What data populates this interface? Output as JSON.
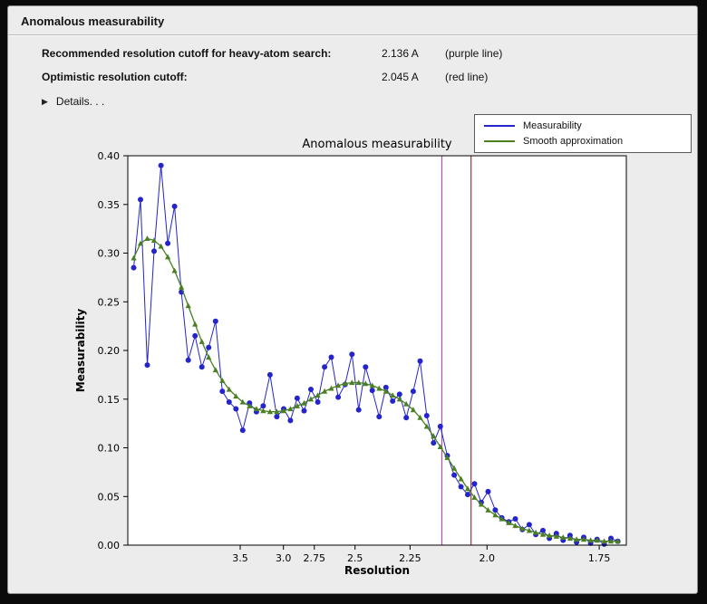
{
  "panel": {
    "title": "Anomalous measurability",
    "info_rows": [
      {
        "label": "Recommended resolution cutoff for heavy-atom search:",
        "value": "2.136 A",
        "note": "(purple line)"
      },
      {
        "label": "Optimistic resolution cutoff:",
        "value": "2.045 A",
        "note": "(red line)"
      }
    ],
    "details": {
      "label": "Details. . .",
      "expanded": false
    }
  },
  "legend": {
    "position": "top-right",
    "entries": [
      {
        "label": "Measurability",
        "color": "#2424cc"
      },
      {
        "label": "Smooth approximation",
        "color": "#4a8022"
      }
    ]
  },
  "chart_data": {
    "type": "line",
    "title": "Anomalous measurability",
    "xlabel": "Resolution",
    "ylabel": "Measurability",
    "grid": false,
    "legend_position": "upper right, above plot",
    "x_axis": {
      "scale": "inverse_resolution_squared",
      "tick_values_A": [
        3.5,
        3.0,
        2.75,
        2.5,
        2.25,
        2.0,
        1.75
      ],
      "tick_labels": [
        "3.5",
        "3.0",
        "2.75",
        "2.5",
        "2.25",
        "2.0",
        "1.75"
      ],
      "range_inv_sq": [
        0.005,
        0.345
      ]
    },
    "y_axis": {
      "tick_values": [
        0.0,
        0.05,
        0.1,
        0.15,
        0.2,
        0.25,
        0.3,
        0.35,
        0.4
      ],
      "tick_labels": [
        "0.00",
        "0.05",
        "0.10",
        "0.15",
        "0.20",
        "0.25",
        "0.30",
        "0.35",
        "0.40"
      ],
      "range": [
        0.0,
        0.4
      ]
    },
    "resolution_A": [
      10.541,
      8.56,
      7.392,
      6.601,
      6.019,
      5.568,
      5.206,
      4.906,
      4.652,
      4.434,
      4.245,
      4.077,
      3.928,
      3.794,
      3.673,
      3.564,
      3.463,
      3.37,
      3.284,
      3.205,
      3.131,
      3.062,
      2.997,
      2.937,
      2.88,
      2.826,
      2.775,
      2.726,
      2.68,
      2.637,
      2.595,
      2.555,
      2.517,
      2.481,
      2.446,
      2.413,
      2.381,
      2.35,
      2.321,
      2.292,
      2.265,
      2.238,
      2.212,
      2.188,
      2.164,
      2.141,
      2.118,
      2.096,
      2.075,
      2.055,
      2.035,
      2.016,
      1.997,
      1.978,
      1.961,
      1.943,
      1.927,
      1.91,
      1.894,
      1.879,
      1.863,
      1.849,
      1.834,
      1.82,
      1.806,
      1.793,
      1.779,
      1.766,
      1.754,
      1.741,
      1.729,
      1.717
    ],
    "series": [
      {
        "name": "Measurability",
        "color": "#2424cc",
        "marker": "circle",
        "values": [
          0.285,
          0.355,
          0.185,
          0.302,
          0.39,
          0.31,
          0.348,
          0.26,
          0.19,
          0.215,
          0.183,
          0.203,
          0.23,
          0.158,
          0.147,
          0.14,
          0.118,
          0.146,
          0.137,
          0.143,
          0.175,
          0.132,
          0.14,
          0.128,
          0.151,
          0.138,
          0.16,
          0.147,
          0.183,
          0.193,
          0.152,
          0.165,
          0.196,
          0.139,
          0.183,
          0.159,
          0.132,
          0.162,
          0.148,
          0.155,
          0.131,
          0.158,
          0.189,
          0.133,
          0.105,
          0.122,
          0.092,
          0.072,
          0.06,
          0.052,
          0.063,
          0.044,
          0.055,
          0.036,
          0.028,
          0.024,
          0.027,
          0.016,
          0.021,
          0.011,
          0.015,
          0.007,
          0.012,
          0.005,
          0.01,
          0.003,
          0.008,
          0.002,
          0.006,
          0.001,
          0.007,
          0.004
        ]
      },
      {
        "name": "Smooth approximation",
        "color": "#4a8022",
        "marker": "triangle",
        "values": [
          0.295,
          0.31,
          0.315,
          0.313,
          0.307,
          0.296,
          0.282,
          0.265,
          0.246,
          0.227,
          0.209,
          0.193,
          0.18,
          0.169,
          0.16,
          0.153,
          0.147,
          0.143,
          0.14,
          0.138,
          0.137,
          0.137,
          0.138,
          0.14,
          0.143,
          0.146,
          0.15,
          0.154,
          0.158,
          0.161,
          0.164,
          0.166,
          0.167,
          0.167,
          0.166,
          0.164,
          0.161,
          0.158,
          0.154,
          0.15,
          0.145,
          0.139,
          0.131,
          0.122,
          0.112,
          0.101,
          0.09,
          0.079,
          0.068,
          0.058,
          0.049,
          0.042,
          0.036,
          0.031,
          0.027,
          0.023,
          0.02,
          0.017,
          0.015,
          0.013,
          0.011,
          0.01,
          0.009,
          0.008,
          0.007,
          0.006,
          0.006,
          0.005,
          0.005,
          0.004,
          0.004,
          0.004
        ]
      }
    ],
    "vlines": [
      {
        "resolution_A": 2.136,
        "color": "#b34fb3",
        "meaning": "recommended resolution cutoff (purple line)"
      },
      {
        "resolution_A": 2.045,
        "color": "#a03232",
        "meaning": "optimistic resolution cutoff (red line)"
      }
    ]
  }
}
